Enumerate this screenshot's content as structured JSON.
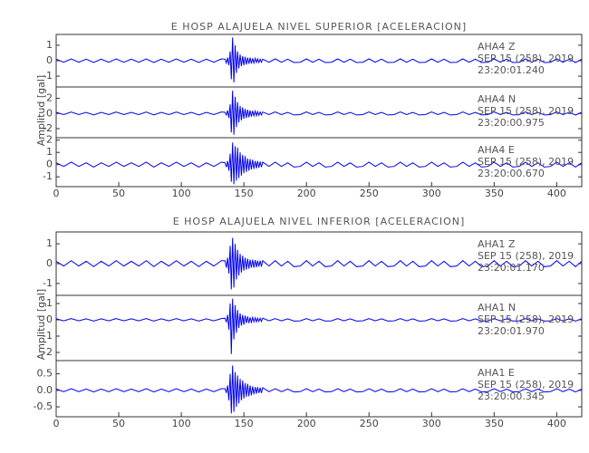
{
  "chart_data": [
    {
      "type": "line",
      "title": "E HOSP ALAJUELA NIVEL SUPERIOR [ACELERACION]",
      "y_label": "Amplitud [gal]",
      "xlim": [
        0,
        420
      ],
      "xticks": [
        0,
        50,
        100,
        150,
        200,
        250,
        300,
        350,
        400
      ],
      "x": [
        0,
        6,
        12,
        18,
        24,
        30,
        36,
        42,
        48,
        54,
        60,
        66,
        72,
        78,
        84,
        90,
        96,
        102,
        108,
        114,
        120,
        126,
        132,
        135,
        136,
        137,
        138,
        139,
        140,
        141,
        142,
        143,
        144,
        145,
        146,
        147,
        148,
        149,
        150,
        151,
        152,
        153,
        154,
        155,
        156,
        157,
        158,
        159,
        160,
        161,
        162,
        163,
        164,
        165,
        170,
        175,
        180,
        185,
        190,
        195,
        200,
        205,
        210,
        215,
        220,
        225,
        230,
        235,
        240,
        245,
        250,
        255,
        260,
        265,
        270,
        275,
        280,
        285,
        290,
        295,
        300,
        305,
        310,
        315,
        320,
        325,
        330,
        335,
        340,
        345,
        350,
        355,
        360,
        365,
        370,
        375,
        380,
        385,
        390,
        395,
        400,
        405,
        410,
        415,
        420
      ],
      "panels": [
        {
          "station": "AHA4   Z",
          "date": "SEP 15 (258), 2019",
          "time": "23:20:01.240",
          "color": "#0000ee",
          "ylim": [
            -1.7,
            1.7
          ],
          "yticks": [
            -1,
            0,
            1
          ],
          "values": [
            0.1,
            -0.1,
            0.12,
            -0.1,
            0.1,
            -0.12,
            0.1,
            -0.1,
            0.12,
            -0.1,
            0.1,
            -0.1,
            0.12,
            -0.12,
            0.1,
            -0.1,
            0.12,
            -0.1,
            0.1,
            -0.12,
            0.1,
            -0.1,
            0.12,
            0.1,
            -0.15,
            0.2,
            -0.3,
            0.6,
            -1.2,
            1.5,
            -1.4,
            1.0,
            -0.8,
            0.6,
            -0.5,
            0.4,
            -0.35,
            0.3,
            -0.3,
            0.25,
            -0.25,
            0.2,
            -0.2,
            0.2,
            -0.18,
            0.15,
            -0.15,
            0.15,
            -0.12,
            0.12,
            -0.12,
            0.1,
            -0.1,
            0.1,
            -0.1,
            0.12,
            -0.1,
            0.1,
            -0.12,
            -0.1,
            0.12,
            -0.1,
            0.1,
            -0.12,
            -0.1,
            0.12,
            -0.1,
            0.1,
            -0.12,
            -0.1,
            0.12,
            -0.1,
            0.1,
            -0.12,
            -0.1,
            0.12,
            -0.1,
            0.1,
            -0.12,
            -0.1,
            0.12,
            -0.1,
            0.1,
            -0.12,
            -0.1,
            0.12,
            -0.1,
            0.1,
            -0.12,
            -0.1,
            0.12,
            -0.1,
            0.1,
            -0.12,
            -0.1,
            0.12,
            -0.1,
            0.1,
            -0.12,
            -0.1,
            0.12,
            -0.1,
            0.1,
            -0.12,
            0.1
          ]
        },
        {
          "station": "AHA4   N",
          "date": "SEP 15 (258), 2019",
          "time": "23:20:00.975",
          "color": "#0000ee",
          "ylim": [
            -3.2,
            3.5
          ],
          "yticks": [
            -2,
            0,
            2
          ],
          "values": [
            0.15,
            -0.15,
            0.2,
            -0.15,
            0.15,
            -0.2,
            0.15,
            -0.15,
            0.2,
            -0.15,
            0.15,
            -0.15,
            0.2,
            -0.2,
            0.15,
            -0.15,
            0.2,
            -0.15,
            0.15,
            -0.2,
            0.15,
            -0.15,
            0.2,
            0.15,
            -0.2,
            0.4,
            -0.6,
            1.2,
            -2.5,
            3.0,
            -2.8,
            2.2,
            -1.8,
            1.5,
            -1.2,
            1.0,
            -0.9,
            0.8,
            -0.7,
            0.6,
            -0.6,
            0.5,
            -0.5,
            0.4,
            -0.4,
            0.35,
            -0.3,
            0.3,
            -0.3,
            0.25,
            -0.25,
            0.2,
            -0.2,
            0.2,
            -0.15,
            0.2,
            -0.15,
            0.15,
            -0.2,
            -0.15,
            0.2,
            -0.15,
            0.15,
            -0.2,
            -0.15,
            0.2,
            -0.15,
            0.15,
            -0.2,
            -0.15,
            0.2,
            -0.15,
            0.15,
            -0.2,
            -0.15,
            0.2,
            -0.15,
            0.15,
            -0.2,
            -0.15,
            0.2,
            -0.15,
            0.15,
            -0.2,
            -0.15,
            0.2,
            -0.15,
            0.15,
            -0.2,
            -0.15,
            0.2,
            -0.15,
            0.15,
            -0.2,
            -0.15,
            0.2,
            -0.15,
            0.15,
            -0.2,
            -0.15,
            0.2,
            -0.15,
            0.15,
            -0.2,
            0.15
          ]
        },
        {
          "station": "AHA4   E",
          "date": "SEP 15 (258), 2019",
          "time": "23:20:00.670",
          "color": "#0000ee",
          "ylim": [
            -1.8,
            2.2
          ],
          "yticks": [
            -1,
            0,
            1,
            2
          ],
          "values": [
            0.15,
            -0.15,
            0.2,
            -0.15,
            0.15,
            -0.2,
            0.15,
            -0.15,
            0.2,
            -0.15,
            0.15,
            -0.15,
            0.2,
            -0.2,
            0.15,
            -0.15,
            0.2,
            -0.15,
            0.15,
            -0.2,
            0.15,
            -0.15,
            0.2,
            0.15,
            -0.2,
            0.3,
            -0.5,
            0.9,
            -1.4,
            1.8,
            -1.6,
            1.5,
            -1.3,
            1.4,
            -1.1,
            1.0,
            -0.9,
            0.8,
            -0.7,
            0.7,
            -0.6,
            0.5,
            -0.5,
            0.45,
            -0.4,
            0.4,
            -0.35,
            0.3,
            -0.3,
            0.3,
            -0.25,
            0.25,
            -0.2,
            0.2,
            -0.15,
            0.2,
            -0.15,
            0.15,
            -0.2,
            -0.15,
            0.2,
            -0.15,
            0.15,
            -0.2,
            -0.15,
            0.2,
            -0.15,
            0.15,
            -0.2,
            -0.15,
            0.2,
            -0.15,
            0.15,
            -0.2,
            -0.15,
            0.2,
            -0.15,
            0.15,
            -0.2,
            -0.15,
            0.2,
            -0.15,
            0.15,
            -0.2,
            -0.15,
            0.2,
            -0.15,
            0.15,
            -0.2,
            -0.15,
            0.2,
            -0.15,
            0.15,
            -0.2,
            -0.15,
            0.2,
            -0.15,
            0.15,
            -0.2,
            -0.15,
            0.2,
            -0.15,
            0.15,
            -0.2,
            0.15
          ]
        }
      ]
    },
    {
      "type": "line",
      "title": "E HOSP ALAJUELA NIVEL INFERIOR [ACELERACION]",
      "y_label": "Amplitud [gal]",
      "xlim": [
        0,
        420
      ],
      "xticks": [
        0,
        50,
        100,
        150,
        200,
        250,
        300,
        350,
        400
      ],
      "x": [
        0,
        6,
        12,
        18,
        24,
        30,
        36,
        42,
        48,
        54,
        60,
        66,
        72,
        78,
        84,
        90,
        96,
        102,
        108,
        114,
        120,
        126,
        132,
        135,
        136,
        137,
        138,
        139,
        140,
        141,
        142,
        143,
        144,
        145,
        146,
        147,
        148,
        149,
        150,
        151,
        152,
        153,
        154,
        155,
        156,
        157,
        158,
        159,
        160,
        161,
        162,
        163,
        164,
        165,
        170,
        175,
        180,
        185,
        190,
        195,
        200,
        205,
        210,
        215,
        220,
        225,
        230,
        235,
        240,
        245,
        250,
        255,
        260,
        265,
        270,
        275,
        280,
        285,
        290,
        295,
        300,
        305,
        310,
        315,
        320,
        325,
        330,
        335,
        340,
        345,
        350,
        355,
        360,
        365,
        370,
        375,
        380,
        385,
        390,
        395,
        400,
        405,
        410,
        415,
        420
      ],
      "panels": [
        {
          "station": "AHA1   Z",
          "date": "SEP 15 (258), 2019",
          "time": "23:20:01.170",
          "color": "#0000ee",
          "ylim": [
            -1.6,
            1.6
          ],
          "yticks": [
            -1,
            0,
            1
          ],
          "values": [
            0.12,
            -0.12,
            0.15,
            -0.12,
            0.12,
            -0.15,
            0.12,
            -0.12,
            0.15,
            -0.12,
            0.12,
            -0.12,
            0.15,
            -0.15,
            0.12,
            -0.12,
            0.15,
            -0.12,
            0.12,
            -0.15,
            0.12,
            -0.12,
            0.15,
            0.15,
            -0.2,
            0.3,
            -0.5,
            0.9,
            -1.3,
            1.3,
            -1.2,
            1.0,
            -0.8,
            0.7,
            -0.6,
            0.5,
            -0.45,
            0.4,
            -0.35,
            0.3,
            -0.3,
            0.25,
            -0.25,
            0.2,
            -0.2,
            0.2,
            -0.2,
            0.18,
            -0.18,
            0.15,
            -0.15,
            0.15,
            -0.15,
            0.15,
            -0.12,
            0.15,
            -0.12,
            0.12,
            -0.15,
            -0.12,
            0.15,
            -0.12,
            0.12,
            -0.15,
            -0.12,
            0.15,
            -0.12,
            0.12,
            -0.15,
            -0.12,
            0.15,
            -0.12,
            0.12,
            -0.15,
            -0.12,
            0.15,
            -0.12,
            0.12,
            -0.15,
            -0.12,
            0.15,
            -0.12,
            0.12,
            -0.15,
            -0.12,
            0.15,
            -0.12,
            0.12,
            -0.15,
            -0.12,
            0.15,
            -0.12,
            0.12,
            -0.15,
            -0.12,
            0.15,
            -0.12,
            0.12,
            -0.15,
            -0.12,
            0.15,
            -0.12,
            0.12,
            -0.15,
            0.12
          ]
        },
        {
          "station": "AHA1   N",
          "date": "SEP 15 (258), 2019",
          "time": "23:20:01.970",
          "color": "#0000ee",
          "ylim": [
            -2.5,
            1.5
          ],
          "yticks": [
            -2,
            -1,
            0,
            1
          ],
          "values": [
            0.06,
            -0.06,
            0.08,
            -0.06,
            0.06,
            -0.08,
            0.06,
            -0.06,
            0.08,
            -0.06,
            0.06,
            -0.06,
            0.08,
            -0.08,
            0.06,
            -0.06,
            0.08,
            -0.06,
            0.06,
            -0.08,
            0.06,
            -0.06,
            0.08,
            0.1,
            -0.15,
            0.3,
            -0.6,
            1.0,
            -2.1,
            1.3,
            -1.2,
            0.9,
            -0.8,
            0.6,
            -0.5,
            0.4,
            -0.35,
            0.3,
            -0.3,
            0.25,
            -0.2,
            0.2,
            -0.2,
            0.15,
            -0.15,
            0.15,
            -0.12,
            0.12,
            -0.12,
            0.1,
            -0.1,
            0.1,
            -0.1,
            0.1,
            -0.06,
            0.08,
            -0.06,
            0.06,
            -0.08,
            -0.06,
            0.08,
            -0.06,
            0.06,
            -0.08,
            -0.06,
            0.08,
            -0.06,
            0.06,
            -0.08,
            -0.06,
            0.08,
            -0.06,
            0.06,
            -0.08,
            -0.06,
            0.08,
            -0.06,
            0.06,
            -0.08,
            -0.06,
            0.08,
            -0.06,
            0.06,
            -0.08,
            -0.06,
            0.08,
            -0.06,
            0.06,
            -0.08,
            -0.06,
            0.08,
            -0.06,
            0.06,
            -0.08,
            -0.06,
            0.08,
            -0.06,
            0.06,
            -0.08,
            -0.06,
            0.08,
            -0.06,
            0.06,
            -0.08,
            0.06
          ]
        },
        {
          "station": "AHA1   E",
          "date": "SEP 15 (258), 2019",
          "time": "23:20:00.345",
          "color": "#0000ee",
          "ylim": [
            -0.8,
            0.9
          ],
          "yticks": [
            -0.5,
            {
              "value": 0,
              "label": "0.0"
            },
            0.5
          ],
          "values": [
            0.04,
            -0.04,
            0.05,
            -0.04,
            0.04,
            -0.05,
            0.04,
            -0.04,
            0.05,
            -0.04,
            0.04,
            -0.04,
            0.05,
            -0.05,
            0.04,
            -0.04,
            0.05,
            -0.04,
            0.04,
            -0.05,
            0.04,
            -0.04,
            0.05,
            0.05,
            -0.08,
            0.15,
            -0.3,
            0.5,
            -0.7,
            0.75,
            -0.65,
            0.55,
            -0.5,
            0.45,
            -0.4,
            0.35,
            -0.3,
            0.3,
            -0.25,
            0.22,
            -0.2,
            0.2,
            -0.18,
            0.15,
            -0.15,
            0.12,
            -0.12,
            0.1,
            -0.1,
            0.1,
            -0.08,
            0.08,
            -0.08,
            0.08,
            -0.04,
            0.05,
            -0.04,
            0.04,
            -0.05,
            -0.04,
            0.05,
            -0.04,
            0.04,
            -0.05,
            -0.04,
            0.05,
            -0.04,
            0.04,
            -0.05,
            -0.04,
            0.05,
            -0.04,
            0.04,
            -0.05,
            -0.04,
            0.05,
            -0.04,
            0.04,
            -0.05,
            -0.04,
            0.05,
            -0.04,
            0.04,
            -0.05,
            -0.04,
            0.05,
            -0.04,
            0.04,
            -0.05,
            -0.04,
            0.05,
            -0.04,
            0.04,
            -0.05,
            -0.04,
            0.05,
            -0.04,
            0.04,
            -0.05,
            -0.04,
            0.05,
            -0.04,
            0.04,
            -0.05,
            0.04
          ]
        }
      ]
    }
  ]
}
